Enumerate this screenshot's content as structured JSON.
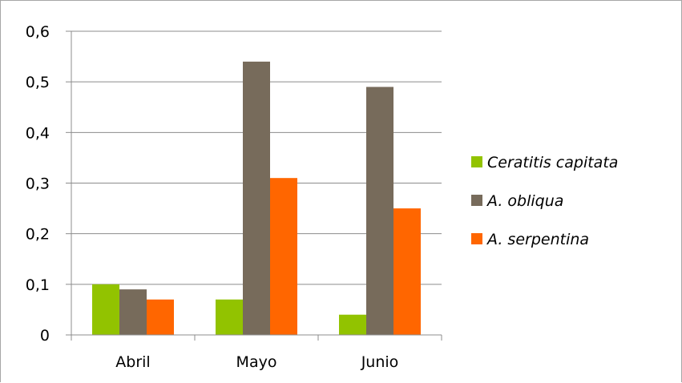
{
  "chart_data": {
    "type": "bar",
    "categories": [
      "Abril",
      "Mayo",
      "Junio"
    ],
    "series": [
      {
        "name": "Ceratitis capitata",
        "values": [
          0.1,
          0.07,
          0.04
        ],
        "color": "#92c300"
      },
      {
        "name": "A. obliqua",
        "values": [
          0.09,
          0.54,
          0.49
        ],
        "color": "#776b5b"
      },
      {
        "name": "A. serpentina",
        "values": [
          0.07,
          0.31,
          0.25
        ],
        "color": "#ff6600"
      }
    ],
    "ylim": [
      0,
      0.6
    ],
    "yticks": [
      "0",
      "0,1",
      "0,2",
      "0,3",
      "0,4",
      "0,5",
      "0,6"
    ],
    "ytick_values": [
      0,
      0.1,
      0.2,
      0.3,
      0.4,
      0.5,
      0.6
    ],
    "grid": true,
    "legend_position": "right"
  }
}
